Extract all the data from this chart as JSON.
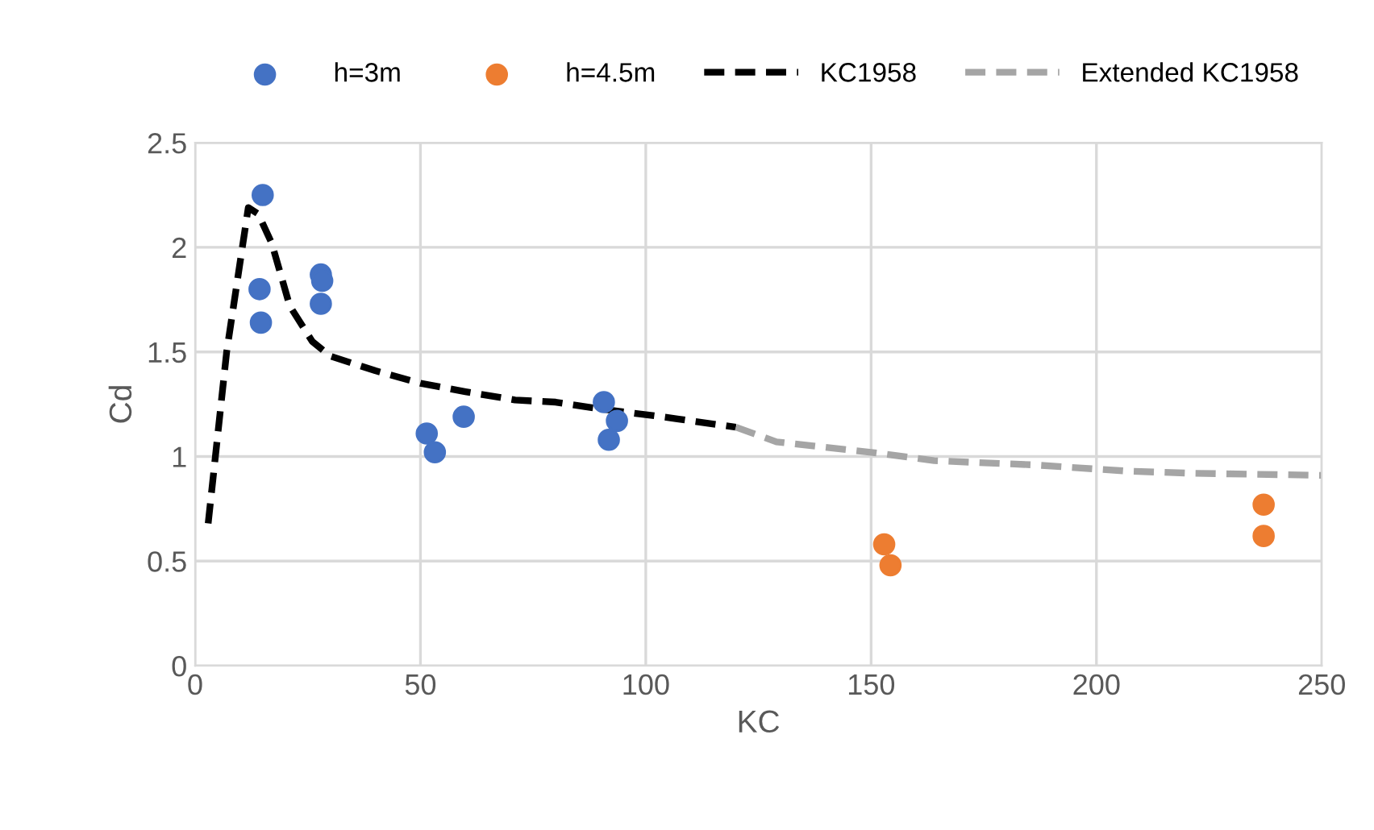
{
  "chart_data": {
    "type": "scatter",
    "xlabel": "KC",
    "ylabel": "Cd",
    "xlim": [
      0,
      250
    ],
    "ylim": [
      0,
      2.5
    ],
    "xticks": [
      0,
      50,
      100,
      150,
      200,
      250
    ],
    "yticks": [
      0,
      0.5,
      1,
      1.5,
      2,
      2.5
    ],
    "grid": true,
    "legend": "top",
    "marker": "circle",
    "series": [
      {
        "name": "h=3m",
        "color": "#4472c4",
        "x": [
          15,
          14.3,
          14.6,
          27.9,
          28.2,
          27.9,
          51.4,
          53.2,
          59.6,
          90.7,
          91.8,
          93.6
        ],
        "values": [
          2.25,
          1.8,
          1.64,
          1.87,
          1.84,
          1.73,
          1.11,
          1.02,
          1.19,
          1.26,
          1.08,
          1.17
        ]
      },
      {
        "name": "h=4.5m",
        "color": "#ed7d31",
        "x": [
          152.9,
          154.3,
          237.1,
          237.1
        ],
        "values": [
          0.58,
          0.48,
          0.77,
          0.62
        ]
      },
      {
        "name": "KC1958",
        "type": "line",
        "color": "#000000",
        "line_style": "dashed",
        "marker": "none",
        "x": [
          2.9,
          7,
          11.8,
          14,
          17,
          21,
          26,
          30,
          40,
          50,
          60,
          71,
          80,
          89,
          100,
          107,
          120
        ],
        "values": [
          0.68,
          1.5,
          2.19,
          2.16,
          2.02,
          1.72,
          1.55,
          1.48,
          1.41,
          1.35,
          1.31,
          1.27,
          1.26,
          1.23,
          1.2,
          1.18,
          1.14
        ]
      },
      {
        "name": "Extended KC1958",
        "type": "line",
        "color": "#a5a5a5",
        "line_style": "dashed",
        "marker": "none",
        "x": [
          120,
          129,
          150,
          164,
          186,
          207,
          221,
          250
        ],
        "values": [
          1.14,
          1.07,
          1.02,
          0.98,
          0.96,
          0.93,
          0.92,
          0.91
        ]
      }
    ]
  }
}
